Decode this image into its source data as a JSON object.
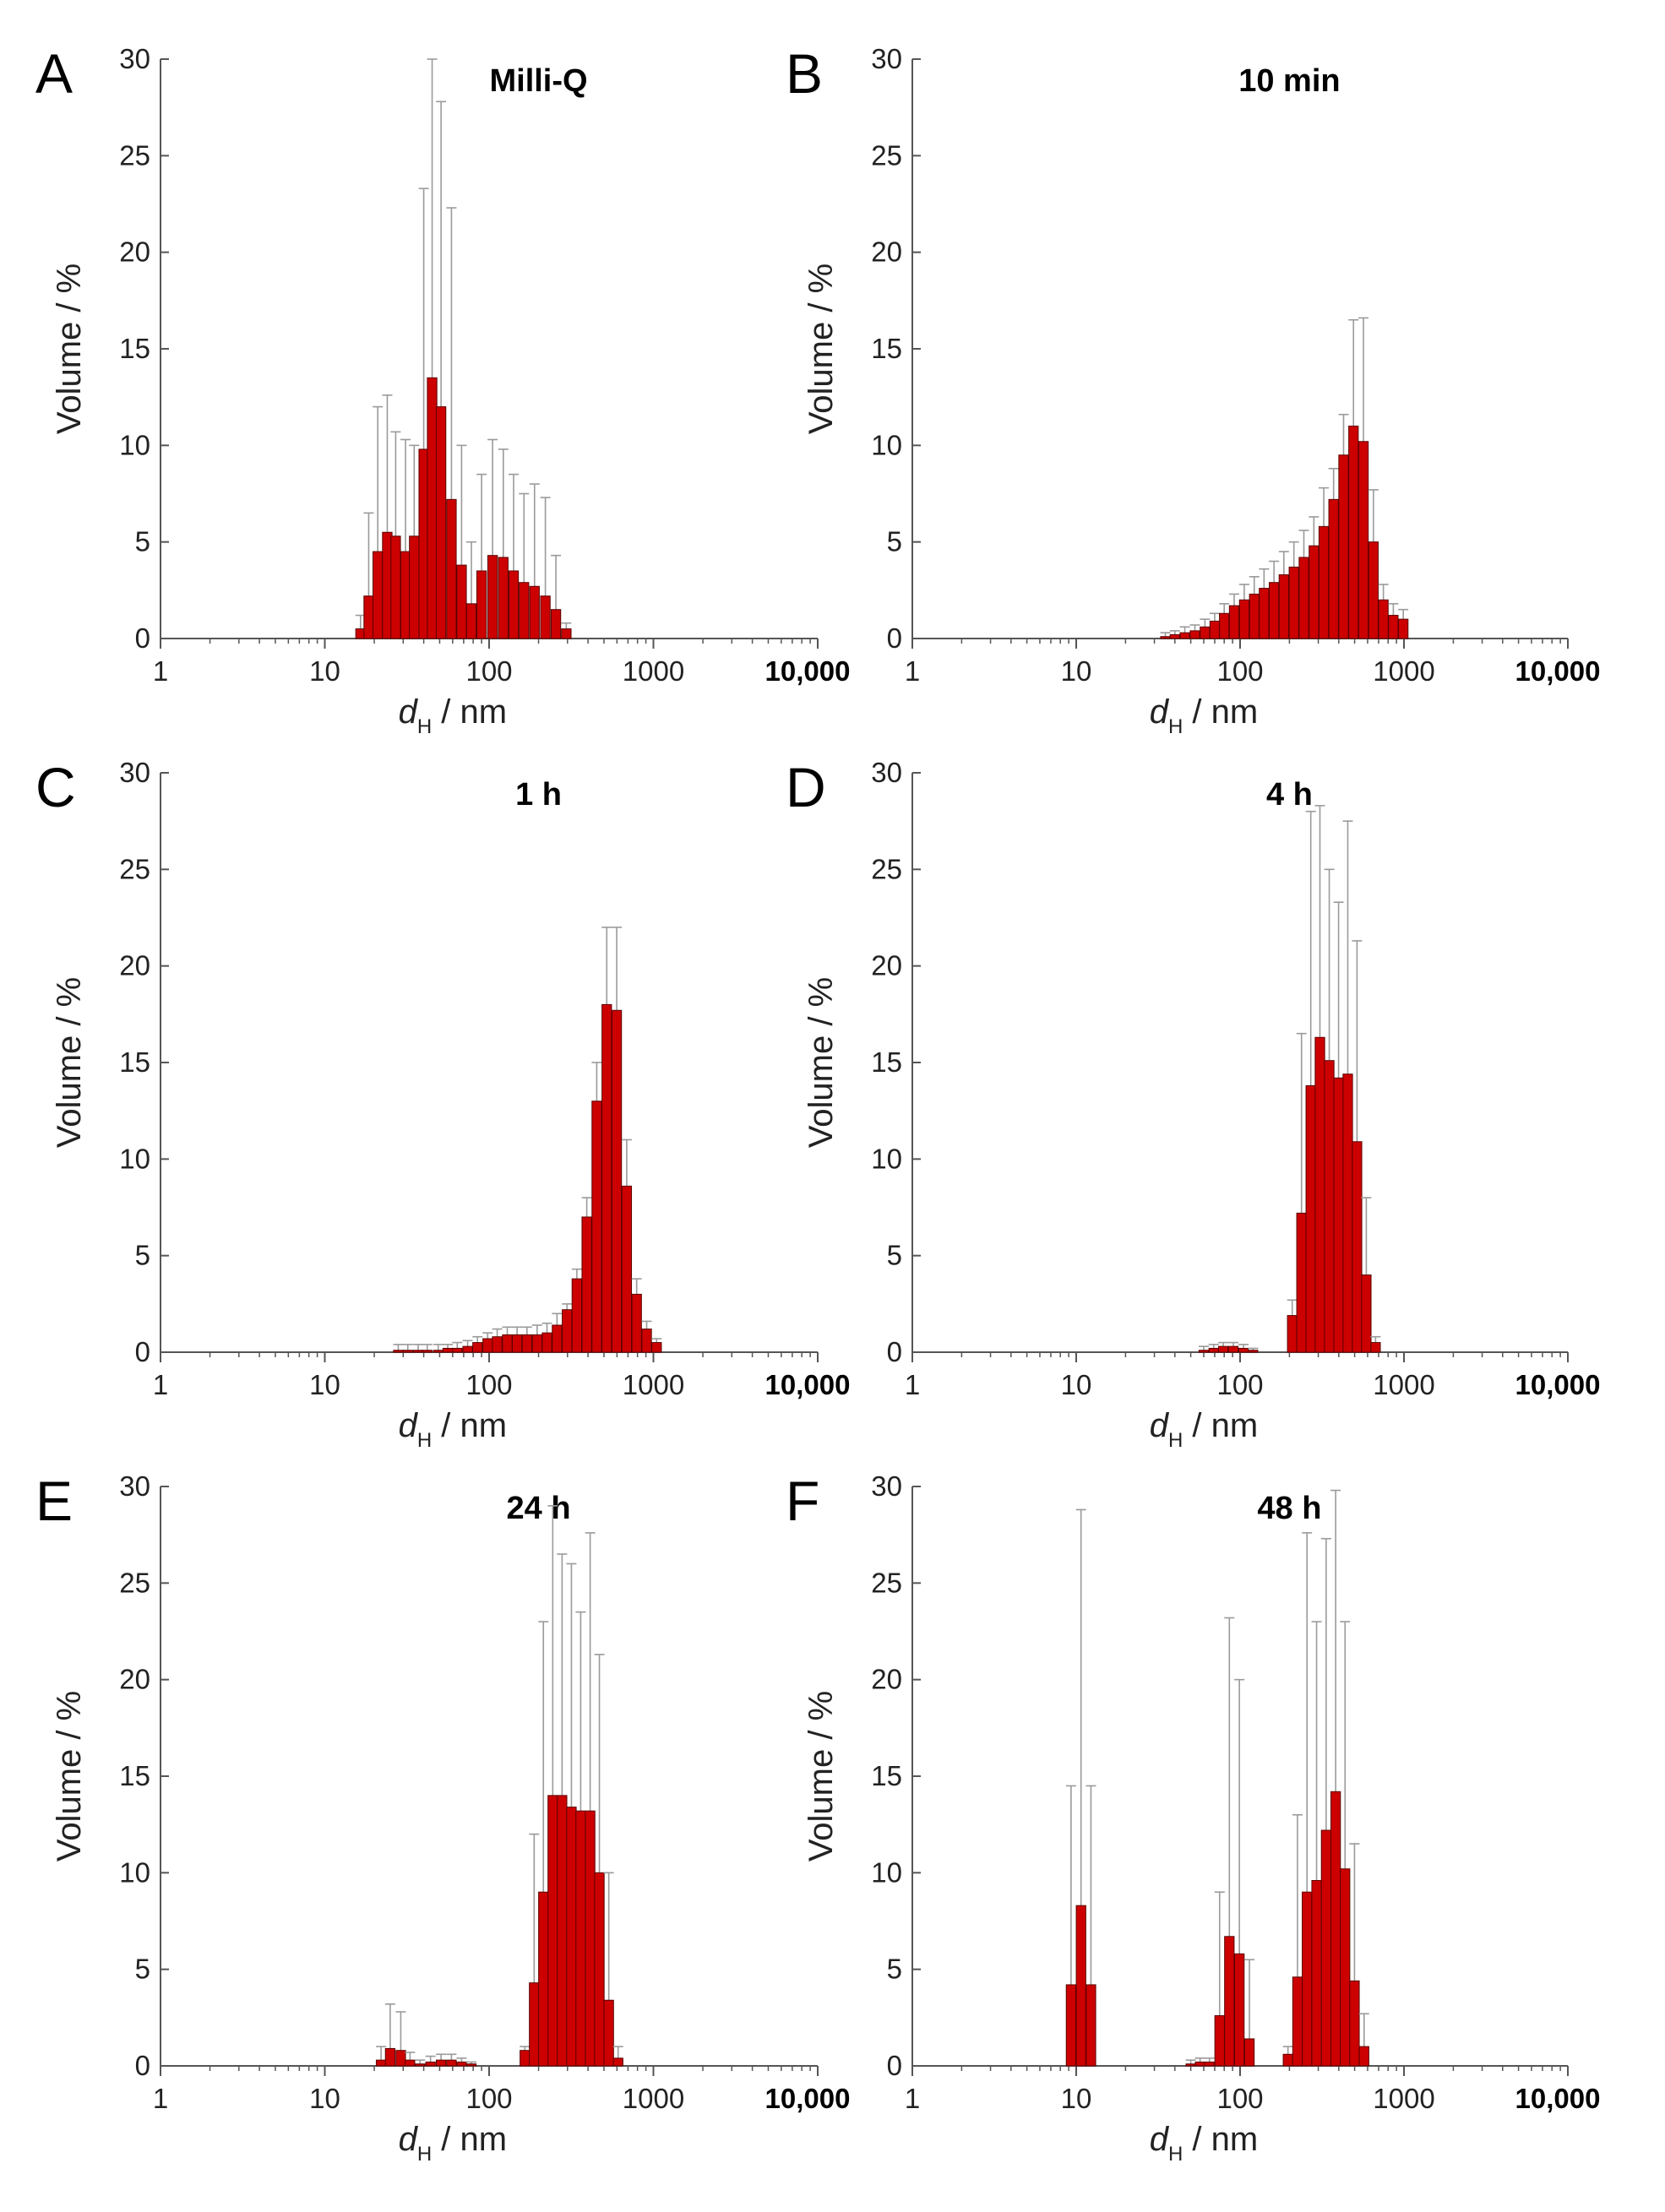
{
  "figure": {
    "bar_color": "#cc0000",
    "bar_edge_color": "#5a0000",
    "error_bar_color": "#9a9a9a",
    "axis_color": "#555555"
  },
  "chart_data": [
    {
      "panel": "A",
      "title": "Milli-Q",
      "type": "bar",
      "xscale": "log",
      "xlim": [
        1,
        10000
      ],
      "ylim": [
        0,
        30
      ],
      "xticks": [
        "1",
        "10",
        "100",
        "1000",
        "10,000"
      ],
      "yticks": [
        "0",
        "5",
        "10",
        "15",
        "20",
        "25",
        "30"
      ],
      "xlabel_main": "d",
      "xlabel_sub": "H",
      "xlabel_rest": " / nm",
      "ylabel": "Volume / %",
      "bars": [
        {
          "x": 16.5,
          "y": 0.5,
          "err": 1.2
        },
        {
          "x": 18.5,
          "y": 2.2,
          "err": 6.5
        },
        {
          "x": 21,
          "y": 4.5,
          "err": 12.0
        },
        {
          "x": 24,
          "y": 5.5,
          "err": 12.6
        },
        {
          "x": 27,
          "y": 5.3,
          "err": 10.7
        },
        {
          "x": 31,
          "y": 4.5,
          "err": 10.3
        },
        {
          "x": 35,
          "y": 5.3,
          "err": 10.0
        },
        {
          "x": 40,
          "y": 9.8,
          "err": 23.3
        },
        {
          "x": 45,
          "y": 13.5,
          "err": 30.0
        },
        {
          "x": 51,
          "y": 12.0,
          "err": 27.8
        },
        {
          "x": 59,
          "y": 7.2,
          "err": 22.3
        },
        {
          "x": 68,
          "y": 3.8,
          "err": 10.0
        },
        {
          "x": 78,
          "y": 1.8,
          "err": 5.0
        },
        {
          "x": 90,
          "y": 3.5,
          "err": 8.5
        },
        {
          "x": 105,
          "y": 4.3,
          "err": 10.3
        },
        {
          "x": 122,
          "y": 4.2,
          "err": 9.8
        },
        {
          "x": 141,
          "y": 3.5,
          "err": 8.5
        },
        {
          "x": 163,
          "y": 2.9,
          "err": 7.5
        },
        {
          "x": 189,
          "y": 2.7,
          "err": 8.0
        },
        {
          "x": 220,
          "y": 2.2,
          "err": 7.3
        },
        {
          "x": 255,
          "y": 1.5,
          "err": 4.3
        },
        {
          "x": 295,
          "y": 0.5,
          "err": 0.8
        }
      ]
    },
    {
      "panel": "B",
      "title": "10 min",
      "type": "bar",
      "xscale": "log",
      "xlim": [
        1,
        10000
      ],
      "ylim": [
        0,
        30
      ],
      "xticks": [
        "1",
        "10",
        "100",
        "1000",
        "10,000"
      ],
      "yticks": [
        "0",
        "5",
        "10",
        "15",
        "20",
        "25",
        "30"
      ],
      "xlabel_main": "d",
      "xlabel_sub": "H",
      "xlabel_rest": " / nm",
      "ylabel": "Volume / %",
      "bars": [
        {
          "x": 35,
          "y": 0.1,
          "err": 0.3
        },
        {
          "x": 40,
          "y": 0.2,
          "err": 0.4
        },
        {
          "x": 46,
          "y": 0.3,
          "err": 0.6
        },
        {
          "x": 53,
          "y": 0.4,
          "err": 0.7
        },
        {
          "x": 61,
          "y": 0.6,
          "err": 1.0
        },
        {
          "x": 70,
          "y": 0.9,
          "err": 1.3
        },
        {
          "x": 80,
          "y": 1.3,
          "err": 1.8
        },
        {
          "x": 92,
          "y": 1.7,
          "err": 2.3
        },
        {
          "x": 106,
          "y": 2.0,
          "err": 2.8
        },
        {
          "x": 122,
          "y": 2.3,
          "err": 3.2
        },
        {
          "x": 140,
          "y": 2.6,
          "err": 3.6
        },
        {
          "x": 161,
          "y": 2.9,
          "err": 4.0
        },
        {
          "x": 185,
          "y": 3.3,
          "err": 4.5
        },
        {
          "x": 213,
          "y": 3.7,
          "err": 5.0
        },
        {
          "x": 245,
          "y": 4.2,
          "err": 5.6
        },
        {
          "x": 282,
          "y": 4.8,
          "err": 6.3
        },
        {
          "x": 324,
          "y": 5.8,
          "err": 7.8
        },
        {
          "x": 372,
          "y": 7.2,
          "err": 8.8
        },
        {
          "x": 428,
          "y": 9.5,
          "err": 11.6
        },
        {
          "x": 492,
          "y": 11.0,
          "err": 16.5
        },
        {
          "x": 566,
          "y": 10.2,
          "err": 16.6
        },
        {
          "x": 651,
          "y": 5.0,
          "err": 7.7
        },
        {
          "x": 749,
          "y": 2.0,
          "err": 2.8
        },
        {
          "x": 861,
          "y": 1.2,
          "err": 1.8
        },
        {
          "x": 990,
          "y": 1.0,
          "err": 1.5
        }
      ]
    },
    {
      "panel": "C",
      "title": "1 h",
      "type": "bar",
      "xscale": "log",
      "xlim": [
        1,
        10000
      ],
      "ylim": [
        0,
        30
      ],
      "xticks": [
        "1",
        "10",
        "100",
        "1000",
        "10,000"
      ],
      "yticks": [
        "0",
        "5",
        "10",
        "15",
        "20",
        "25",
        "30"
      ],
      "xlabel_main": "d",
      "xlabel_sub": "H",
      "xlabel_rest": " / nm",
      "ylabel": "Volume / %",
      "bars": [
        {
          "x": 28,
          "y": 0.1,
          "err": 0.4
        },
        {
          "x": 32,
          "y": 0.1,
          "err": 0.4
        },
        {
          "x": 37,
          "y": 0.1,
          "err": 0.4
        },
        {
          "x": 42,
          "y": 0.1,
          "err": 0.4
        },
        {
          "x": 49,
          "y": 0.1,
          "err": 0.4
        },
        {
          "x": 56,
          "y": 0.2,
          "err": 0.4
        },
        {
          "x": 64,
          "y": 0.2,
          "err": 0.5
        },
        {
          "x": 74,
          "y": 0.3,
          "err": 0.6
        },
        {
          "x": 85,
          "y": 0.5,
          "err": 0.8
        },
        {
          "x": 98,
          "y": 0.7,
          "err": 1.0
        },
        {
          "x": 112,
          "y": 0.8,
          "err": 1.2
        },
        {
          "x": 129,
          "y": 0.9,
          "err": 1.3
        },
        {
          "x": 148,
          "y": 0.9,
          "err": 1.3
        },
        {
          "x": 170,
          "y": 0.9,
          "err": 1.3
        },
        {
          "x": 196,
          "y": 0.9,
          "err": 1.4
        },
        {
          "x": 225,
          "y": 1.0,
          "err": 1.5
        },
        {
          "x": 259,
          "y": 1.4,
          "err": 2.0
        },
        {
          "x": 298,
          "y": 2.2,
          "err": 2.5
        },
        {
          "x": 342,
          "y": 3.8,
          "err": 4.3
        },
        {
          "x": 393,
          "y": 7.0,
          "err": 8.0
        },
        {
          "x": 452,
          "y": 13.0,
          "err": 15.0
        },
        {
          "x": 520,
          "y": 18.0,
          "err": 22.0
        },
        {
          "x": 598,
          "y": 17.7,
          "err": 22.0
        },
        {
          "x": 688,
          "y": 8.6,
          "err": 11.0
        },
        {
          "x": 791,
          "y": 3.0,
          "err": 3.8
        },
        {
          "x": 910,
          "y": 1.2,
          "err": 1.6
        },
        {
          "x": 1046,
          "y": 0.5,
          "err": 0.7
        }
      ]
    },
    {
      "panel": "D",
      "title": "4 h",
      "type": "bar",
      "xscale": "log",
      "xlim": [
        1,
        10000
      ],
      "ylim": [
        0,
        30
      ],
      "xticks": [
        "1",
        "10",
        "100",
        "1000",
        "10,000"
      ],
      "yticks": [
        "0",
        "5",
        "10",
        "15",
        "20",
        "25",
        "30"
      ],
      "xlabel_main": "d",
      "xlabel_sub": "H",
      "xlabel_rest": " / nm",
      "ylabel": "Volume / %",
      "bars": [
        {
          "x": 60,
          "y": 0.1,
          "err": 0.3
        },
        {
          "x": 69,
          "y": 0.2,
          "err": 0.4
        },
        {
          "x": 79,
          "y": 0.3,
          "err": 0.5
        },
        {
          "x": 91,
          "y": 0.3,
          "err": 0.5
        },
        {
          "x": 105,
          "y": 0.2,
          "err": 0.4
        },
        {
          "x": 120,
          "y": 0.1,
          "err": 0.2
        },
        {
          "x": 208,
          "y": 1.9,
          "err": 2.7
        },
        {
          "x": 237,
          "y": 7.2,
          "err": 16.5
        },
        {
          "x": 270,
          "y": 13.8,
          "err": 28.0
        },
        {
          "x": 307,
          "y": 16.3,
          "err": 28.3
        },
        {
          "x": 350,
          "y": 15.1,
          "err": 25.0
        },
        {
          "x": 399,
          "y": 14.2,
          "err": 23.3
        },
        {
          "x": 454,
          "y": 14.4,
          "err": 27.5
        },
        {
          "x": 517,
          "y": 10.9,
          "err": 21.3
        },
        {
          "x": 589,
          "y": 4.0,
          "err": 8.0
        },
        {
          "x": 671,
          "y": 0.5,
          "err": 0.8
        }
      ]
    },
    {
      "panel": "E",
      "title": "24 h",
      "type": "bar",
      "xscale": "log",
      "xlim": [
        1,
        10000
      ],
      "ylim": [
        0,
        30
      ],
      "xticks": [
        "1",
        "10",
        "100",
        "1000",
        "10,000"
      ],
      "yticks": [
        "0",
        "5",
        "10",
        "15",
        "20",
        "25",
        "30"
      ],
      "xlabel_main": "d",
      "xlabel_sub": "H",
      "xlabel_rest": " / nm",
      "ylabel": "Volume / %",
      "bars": [
        {
          "x": 22,
          "y": 0.3,
          "err": 1.0
        },
        {
          "x": 25,
          "y": 0.9,
          "err": 3.2
        },
        {
          "x": 29,
          "y": 0.8,
          "err": 2.8
        },
        {
          "x": 33,
          "y": 0.3,
          "err": 0.7
        },
        {
          "x": 38,
          "y": 0.1,
          "err": 0.3
        },
        {
          "x": 44,
          "y": 0.2,
          "err": 0.5
        },
        {
          "x": 51,
          "y": 0.3,
          "err": 0.6
        },
        {
          "x": 59,
          "y": 0.3,
          "err": 0.6
        },
        {
          "x": 68,
          "y": 0.2,
          "err": 0.4
        },
        {
          "x": 78,
          "y": 0.1,
          "err": 0.2
        },
        {
          "x": 165,
          "y": 0.8,
          "err": 1.0
        },
        {
          "x": 188,
          "y": 4.3,
          "err": 12.0
        },
        {
          "x": 214,
          "y": 9.0,
          "err": 23.0
        },
        {
          "x": 244,
          "y": 14.0,
          "err": 29.0
        },
        {
          "x": 278,
          "y": 14.0,
          "err": 26.5
        },
        {
          "x": 317,
          "y": 13.4,
          "err": 26.0
        },
        {
          "x": 361,
          "y": 13.2,
          "err": 23.5
        },
        {
          "x": 412,
          "y": 13.2,
          "err": 27.6
        },
        {
          "x": 469,
          "y": 10.0,
          "err": 21.3
        },
        {
          "x": 535,
          "y": 3.4,
          "err": 10.0
        },
        {
          "x": 610,
          "y": 0.4,
          "err": 1.0
        }
      ]
    },
    {
      "panel": "F",
      "title": "48 h",
      "type": "bar",
      "xscale": "log",
      "xlim": [
        1,
        10000
      ],
      "ylim": [
        0,
        30
      ],
      "xticks": [
        "1",
        "10",
        "100",
        "1000",
        "10,000"
      ],
      "yticks": [
        "0",
        "5",
        "10",
        "15",
        "20",
        "25",
        "30"
      ],
      "xlabel_main": "d",
      "xlabel_sub": "H",
      "xlabel_rest": " / nm",
      "ylabel": "Volume / %",
      "bars": [
        {
          "x": 9.3,
          "y": 4.2,
          "err": 14.5
        },
        {
          "x": 10.7,
          "y": 8.3,
          "err": 28.8
        },
        {
          "x": 12.3,
          "y": 4.2,
          "err": 14.5
        },
        {
          "x": 50,
          "y": 0.1,
          "err": 0.3
        },
        {
          "x": 57,
          "y": 0.2,
          "err": 0.4
        },
        {
          "x": 65,
          "y": 0.2,
          "err": 0.4
        },
        {
          "x": 75,
          "y": 2.6,
          "err": 9.0
        },
        {
          "x": 86,
          "y": 6.7,
          "err": 23.2
        },
        {
          "x": 99,
          "y": 5.8,
          "err": 20.0
        },
        {
          "x": 114,
          "y": 1.4,
          "err": 5.5
        },
        {
          "x": 196,
          "y": 0.6,
          "err": 1.0
        },
        {
          "x": 224,
          "y": 4.6,
          "err": 13.0
        },
        {
          "x": 256,
          "y": 9.0,
          "err": 27.6
        },
        {
          "x": 293,
          "y": 9.6,
          "err": 23.0
        },
        {
          "x": 335,
          "y": 12.2,
          "err": 27.3
        },
        {
          "x": 383,
          "y": 14.2,
          "err": 29.8
        },
        {
          "x": 437,
          "y": 10.2,
          "err": 23.0
        },
        {
          "x": 499,
          "y": 4.4,
          "err": 11.5
        },
        {
          "x": 571,
          "y": 1.0,
          "err": 2.7
        }
      ]
    }
  ]
}
